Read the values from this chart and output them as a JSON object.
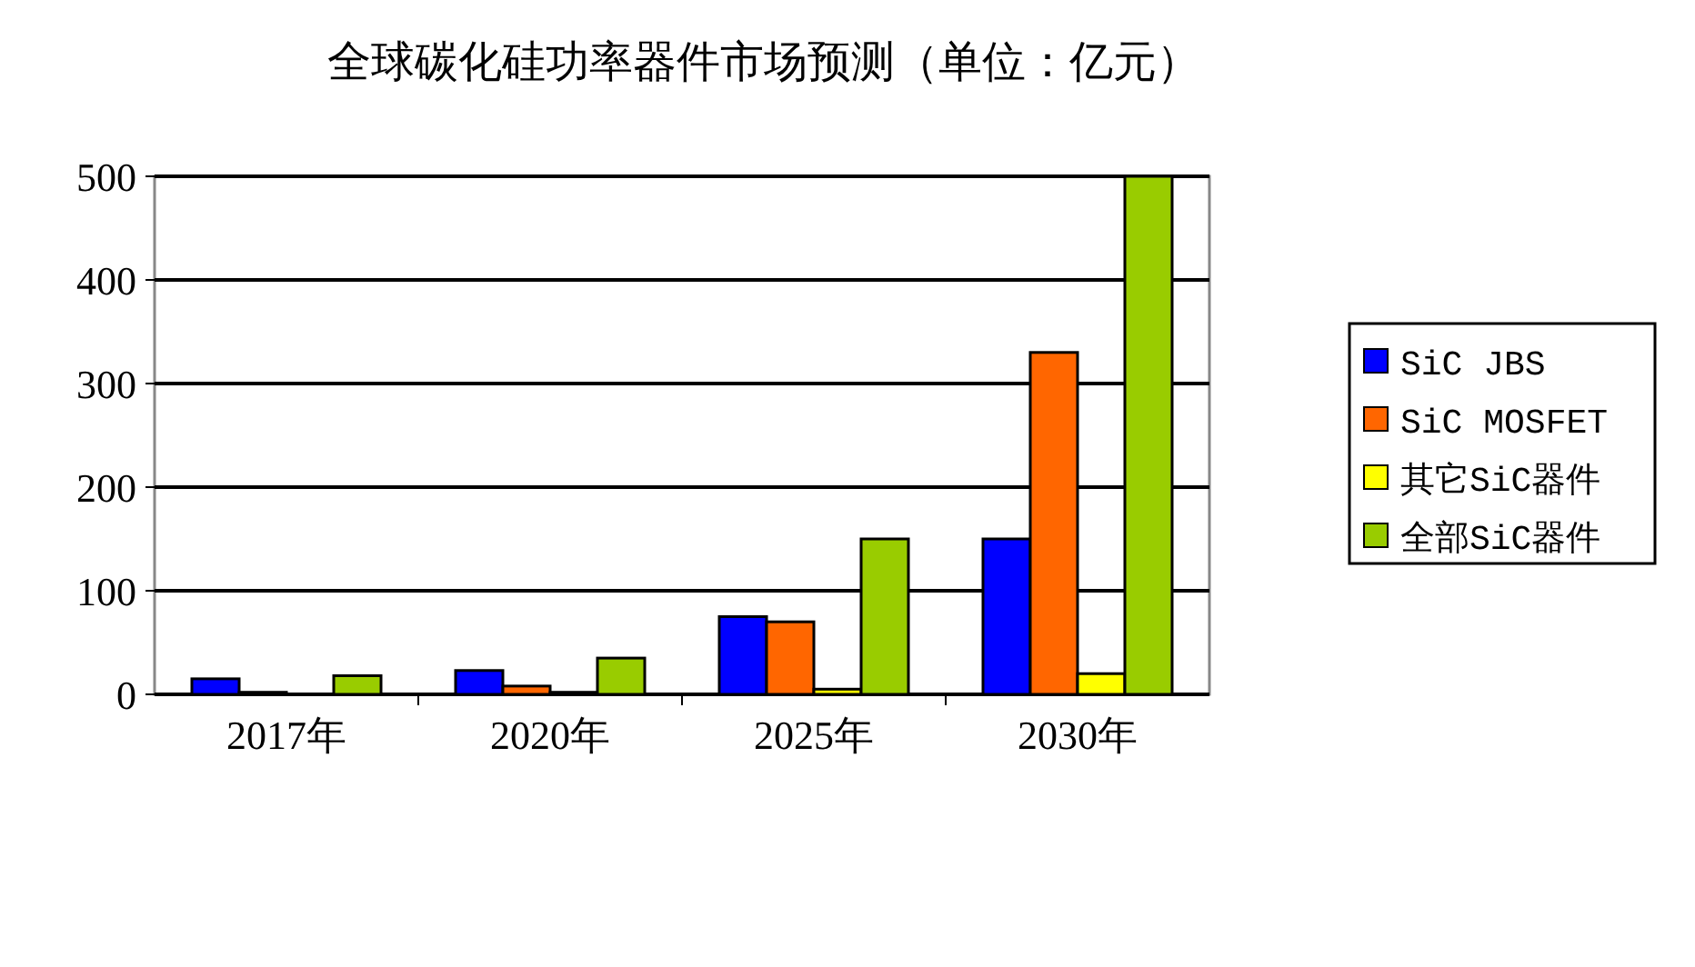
{
  "chart_data": {
    "type": "bar",
    "title": "全球碳化硅功率器件市场预测（单位：亿元）",
    "categories": [
      "2017年",
      "2020年",
      "2025年",
      "2030年"
    ],
    "series": [
      {
        "name": "SiC JBS",
        "color": "#0000ff",
        "values": [
          15,
          23,
          75,
          150
        ]
      },
      {
        "name": "SiC MOSFET",
        "color": "#ff6600",
        "values": [
          2,
          8,
          70,
          330
        ]
      },
      {
        "name": "其它SiC器件",
        "color": "#ffff00",
        "values": [
          null,
          2,
          5,
          20
        ]
      },
      {
        "name": "全部SiC器件",
        "color": "#99cc00",
        "values": [
          18,
          35,
          150,
          500
        ]
      }
    ],
    "ylim": [
      0,
      500
    ],
    "yticks": [
      0,
      100,
      200,
      300,
      400,
      500
    ],
    "grid": "y",
    "legend": "right"
  }
}
